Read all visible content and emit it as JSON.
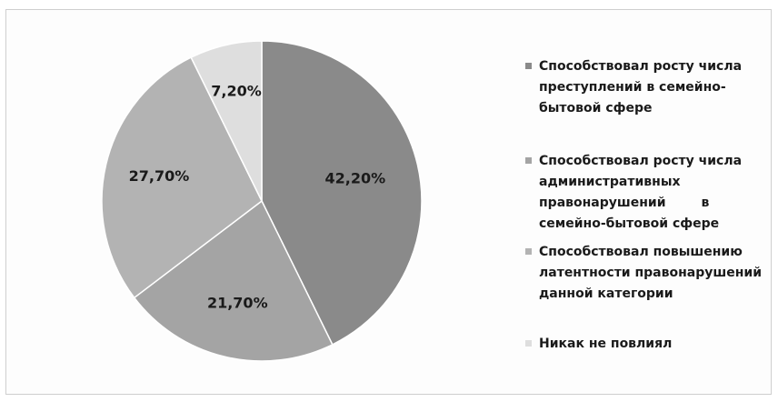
{
  "chart_data": {
    "type": "pie",
    "title": "",
    "legend_position": "right",
    "slices": [
      {
        "label": "Способствовал росту числа\nпреступлений в семейно-\nбытовой сфере",
        "value": 42.2,
        "data_label": "42,20%",
        "color": "#8a8a8a"
      },
      {
        "label": "Способствовал росту числа\nадминистративных\nправонарушений        в\nсемейно-бытовой сфере",
        "value": 21.7,
        "data_label": "21,70%",
        "color": "#a4a4a4"
      },
      {
        "label": "Способствовал повышению\nлатентности правонарушений\nданной категории",
        "value": 27.7,
        "data_label": "27,70%",
        "color": "#b3b3b3"
      },
      {
        "label": "Никак не повлиял",
        "value": 7.2,
        "data_label": "7,20%",
        "color": "#dedede"
      }
    ]
  }
}
